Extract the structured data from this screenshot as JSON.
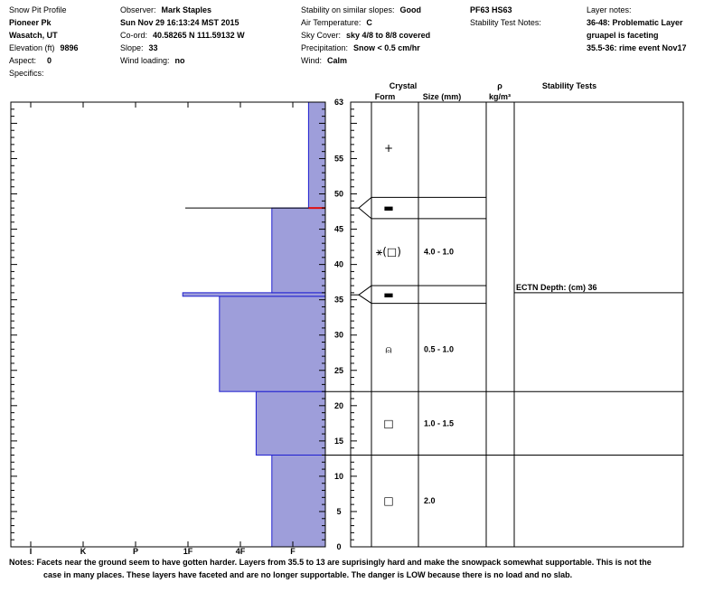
{
  "header": {
    "col1": {
      "title": "Snow Pit Profile",
      "location": "Pioneer Pk",
      "region": "Wasatch, UT",
      "elevation_label": "Elevation (ft)",
      "elevation_value": "9896",
      "aspect_label": "Aspect:",
      "aspect_value": "0",
      "specifics_label": "Specifics:"
    },
    "col2": {
      "observer_label": "Observer:",
      "observer_value": "Mark Staples",
      "datetime": "Sun Nov 29 16:13:24 MST 2015",
      "coord_label": "Co-ord:",
      "coord_value": "40.58265 N 111.59132 W",
      "slope_label": "Slope:",
      "slope_value": "33",
      "wind_loading_label": "Wind loading:",
      "wind_loading_value": "no"
    },
    "col3": {
      "stability_label": "Stability on similar slopes:",
      "stability_value": "Good",
      "air_temp_label": "Air Temperature:",
      "air_temp_value": "C",
      "sky_label": "Sky Cover:",
      "sky_value": "sky 4/8 to 8/8 covered",
      "precip_label": "Precipitation:",
      "precip_value": "Snow < 0.5 cm/hr",
      "wind_label": "Wind:",
      "wind_value": "Calm"
    },
    "col4": {
      "pit_id": "PF63 HS63",
      "stability_test_notes_label": "Stability Test Notes:"
    },
    "col5": {
      "layer_notes_label": "Layer notes:",
      "note1": "36-48: Problematic Layer",
      "note2": "gruapel is faceting",
      "note3": "35.5-36: rime event Nov17"
    }
  },
  "columns": {
    "crystal": "Crystal",
    "form": "Form",
    "size": "Size (mm)",
    "rho": "ρ",
    "rho_unit": "kg/m³",
    "stability_tests": "Stability Tests"
  },
  "chart_data": {
    "type": "bar",
    "orientation": "horizontal-step",
    "title": "",
    "xlabel": "",
    "ylabel": "",
    "ylim": [
      0,
      63
    ],
    "hardness_ticks": [
      "I",
      "K",
      "P",
      "1F",
      "4F",
      "F"
    ],
    "hardness_scale": [
      0,
      1,
      2,
      3,
      4,
      5
    ],
    "depth_ticks": [
      0,
      5,
      10,
      15,
      20,
      25,
      30,
      35,
      40,
      45,
      50,
      55,
      63
    ],
    "layers": [
      {
        "bottom": 0,
        "top": 13,
        "hardness": 4.6
      },
      {
        "bottom": 13,
        "top": 22,
        "hardness": 4.3
      },
      {
        "bottom": 22,
        "top": 35.5,
        "hardness": 3.6
      },
      {
        "bottom": 35.5,
        "top": 36,
        "hardness": 2.9
      },
      {
        "bottom": 36,
        "top": 48,
        "hardness": 4.6
      },
      {
        "bottom": 48,
        "top": 63,
        "hardness": 5.3
      }
    ],
    "problem_interface": 48,
    "colors": {
      "fill": "#9e9eda",
      "edge": "#2020d0",
      "problem": "#e01010"
    }
  },
  "crystals": [
    {
      "depth": 6.5,
      "form": "□",
      "size": "2.0"
    },
    {
      "depth": 17.5,
      "form": "□",
      "size": "1.0 - 1.5"
    },
    {
      "depth": 28.0,
      "form": "⍝",
      "size": "0.5 - 1.0"
    },
    {
      "depth": 35.7,
      "form": "▬",
      "size": ""
    },
    {
      "depth": 41.8,
      "form": "⚹(□)",
      "size": "4.0 - 1.0"
    },
    {
      "depth": 48.0,
      "form": "▬",
      "size": ""
    },
    {
      "depth": 56.5,
      "form": "+",
      "size": ""
    }
  ],
  "stability_tests": [
    {
      "depth": 36,
      "label": "ECTN  Depth: (cm) 36"
    }
  ],
  "notes": {
    "label": "Notes:",
    "line1": "Facets near the ground seem to have gotten harder. Layers from 35.5 to 13 are suprisingly hard and make the snowpack somewhat supportable. This is not the",
    "line2": "case in many places. These layers have faceted  and are no longer supportable. The danger is LOW because there is no load and no slab."
  }
}
